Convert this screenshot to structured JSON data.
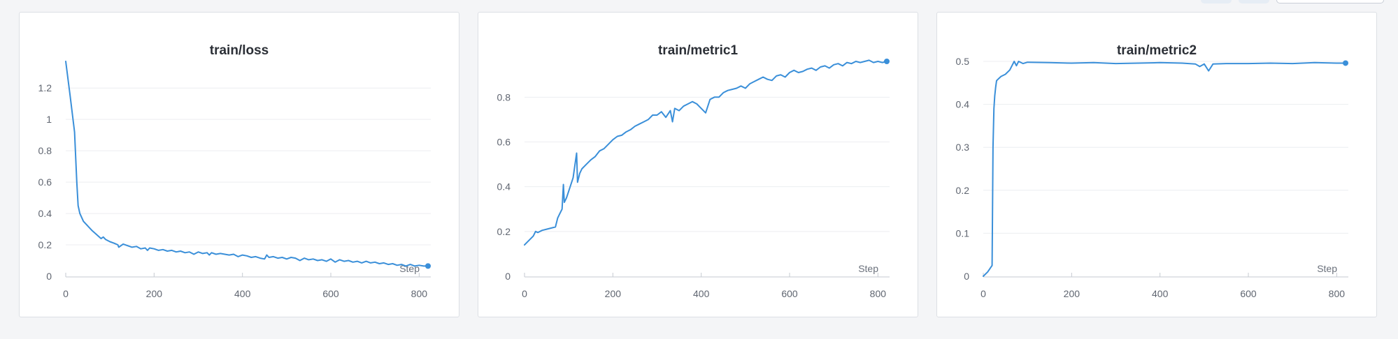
{
  "toolbar": {},
  "chart_data": [
    {
      "type": "line",
      "title": "train/loss",
      "xlabel": "Step",
      "ylabel": "",
      "xlim": [
        0,
        820
      ],
      "ylim": [
        0,
        1.37
      ],
      "xticks": [
        0,
        200,
        400,
        600,
        800
      ],
      "xtick_labels": [
        "0",
        "200",
        "400",
        "600",
        "800"
      ],
      "yticks": [
        0,
        0.2,
        0.4,
        0.6,
        0.8,
        1,
        1.2
      ],
      "ytick_labels": [
        "0",
        "0.2",
        "0.4",
        "0.6",
        "0.8",
        "1",
        "1.2"
      ],
      "grid": true,
      "color": "#3a8fd9",
      "series": [
        {
          "x": [
            0,
            10,
            20,
            25,
            28,
            32,
            40,
            50,
            60,
            70,
            80,
            85,
            90,
            100,
            110,
            118,
            120,
            130,
            140,
            150,
            160,
            170,
            180,
            185,
            190,
            200,
            210,
            220,
            230,
            240,
            250,
            260,
            270,
            280,
            290,
            300,
            310,
            320,
            325,
            330,
            340,
            350,
            360,
            370,
            380,
            390,
            400,
            410,
            420,
            430,
            440,
            450,
            455,
            460,
            470,
            480,
            490,
            500,
            510,
            520,
            530,
            540,
            550,
            560,
            570,
            580,
            590,
            600,
            610,
            620,
            630,
            640,
            650,
            660,
            670,
            680,
            690,
            700,
            710,
            720,
            730,
            740,
            750,
            760,
            770,
            780,
            790,
            800,
            810,
            820
          ],
          "y": [
            1.37,
            1.15,
            0.92,
            0.6,
            0.45,
            0.4,
            0.35,
            0.32,
            0.29,
            0.265,
            0.24,
            0.25,
            0.235,
            0.22,
            0.21,
            0.2,
            0.185,
            0.205,
            0.195,
            0.185,
            0.19,
            0.175,
            0.18,
            0.165,
            0.18,
            0.175,
            0.165,
            0.17,
            0.16,
            0.165,
            0.155,
            0.16,
            0.15,
            0.155,
            0.14,
            0.155,
            0.145,
            0.15,
            0.135,
            0.15,
            0.14,
            0.145,
            0.14,
            0.135,
            0.14,
            0.125,
            0.135,
            0.13,
            0.12,
            0.125,
            0.115,
            0.11,
            0.135,
            0.12,
            0.125,
            0.115,
            0.12,
            0.11,
            0.12,
            0.115,
            0.1,
            0.115,
            0.105,
            0.11,
            0.1,
            0.105,
            0.095,
            0.11,
            0.09,
            0.105,
            0.095,
            0.1,
            0.09,
            0.095,
            0.085,
            0.095,
            0.085,
            0.09,
            0.08,
            0.085,
            0.075,
            0.08,
            0.07,
            0.075,
            0.065,
            0.075,
            0.065,
            0.07,
            0.065,
            0.065
          ]
        }
      ]
    },
    {
      "type": "line",
      "title": "train/metric1",
      "xlabel": "Step",
      "ylabel": "",
      "xlim": [
        0,
        820
      ],
      "ylim": [
        0,
        0.96
      ],
      "xticks": [
        0,
        200,
        400,
        600,
        800
      ],
      "xtick_labels": [
        "0",
        "200",
        "400",
        "600",
        "800"
      ],
      "yticks": [
        0,
        0.2,
        0.4,
        0.6,
        0.8
      ],
      "ytick_labels": [
        "0",
        "0.2",
        "0.4",
        "0.6",
        "0.8"
      ],
      "grid": true,
      "color": "#3a8fd9",
      "series": [
        {
          "x": [
            0,
            10,
            20,
            25,
            30,
            40,
            50,
            60,
            70,
            75,
            80,
            85,
            88,
            90,
            95,
            100,
            110,
            118,
            120,
            125,
            130,
            140,
            150,
            160,
            170,
            180,
            190,
            200,
            210,
            220,
            230,
            240,
            250,
            260,
            270,
            280,
            290,
            300,
            310,
            320,
            330,
            335,
            340,
            350,
            360,
            370,
            380,
            390,
            400,
            410,
            420,
            430,
            440,
            450,
            460,
            470,
            480,
            490,
            500,
            510,
            520,
            530,
            540,
            550,
            560,
            570,
            580,
            590,
            600,
            610,
            620,
            630,
            640,
            650,
            660,
            670,
            680,
            690,
            700,
            710,
            720,
            730,
            740,
            750,
            760,
            770,
            780,
            790,
            800,
            810,
            820
          ],
          "y": [
            0.14,
            0.16,
            0.18,
            0.2,
            0.195,
            0.205,
            0.21,
            0.215,
            0.22,
            0.26,
            0.28,
            0.3,
            0.41,
            0.33,
            0.35,
            0.38,
            0.44,
            0.55,
            0.42,
            0.46,
            0.48,
            0.5,
            0.52,
            0.535,
            0.56,
            0.57,
            0.59,
            0.61,
            0.625,
            0.63,
            0.645,
            0.655,
            0.67,
            0.68,
            0.69,
            0.7,
            0.72,
            0.72,
            0.735,
            0.71,
            0.74,
            0.69,
            0.75,
            0.74,
            0.76,
            0.77,
            0.78,
            0.77,
            0.75,
            0.73,
            0.79,
            0.8,
            0.8,
            0.82,
            0.83,
            0.835,
            0.84,
            0.85,
            0.84,
            0.86,
            0.87,
            0.88,
            0.89,
            0.88,
            0.875,
            0.895,
            0.9,
            0.89,
            0.91,
            0.92,
            0.91,
            0.915,
            0.925,
            0.93,
            0.92,
            0.935,
            0.94,
            0.93,
            0.945,
            0.95,
            0.94,
            0.955,
            0.95,
            0.96,
            0.955,
            0.96,
            0.965,
            0.955,
            0.96,
            0.955,
            0.96
          ]
        }
      ]
    },
    {
      "type": "line",
      "title": "train/metric2",
      "xlabel": "Step",
      "ylabel": "",
      "xlim": [
        0,
        820
      ],
      "ylim": [
        0,
        0.5
      ],
      "xticks": [
        0,
        200,
        400,
        600,
        800
      ],
      "xtick_labels": [
        "0",
        "200",
        "400",
        "600",
        "800"
      ],
      "yticks": [
        0,
        0.1,
        0.2,
        0.3,
        0.4,
        0.5
      ],
      "ytick_labels": [
        "0",
        "0.1",
        "0.2",
        "0.3",
        "0.4",
        "0.5"
      ],
      "grid": true,
      "color": "#3a8fd9",
      "series": [
        {
          "x": [
            0,
            10,
            20,
            22,
            24,
            26,
            28,
            30,
            35,
            40,
            50,
            60,
            70,
            75,
            80,
            90,
            100,
            150,
            200,
            250,
            300,
            350,
            400,
            450,
            480,
            490,
            500,
            510,
            520,
            550,
            600,
            650,
            700,
            750,
            800,
            820
          ],
          "y": [
            0.0,
            0.01,
            0.025,
            0.3,
            0.39,
            0.42,
            0.44,
            0.455,
            0.46,
            0.465,
            0.47,
            0.48,
            0.5,
            0.49,
            0.5,
            0.495,
            0.498,
            0.497,
            0.496,
            0.497,
            0.495,
            0.496,
            0.497,
            0.496,
            0.494,
            0.488,
            0.494,
            0.478,
            0.494,
            0.495,
            0.495,
            0.496,
            0.495,
            0.497,
            0.496,
            0.496
          ]
        }
      ]
    }
  ]
}
